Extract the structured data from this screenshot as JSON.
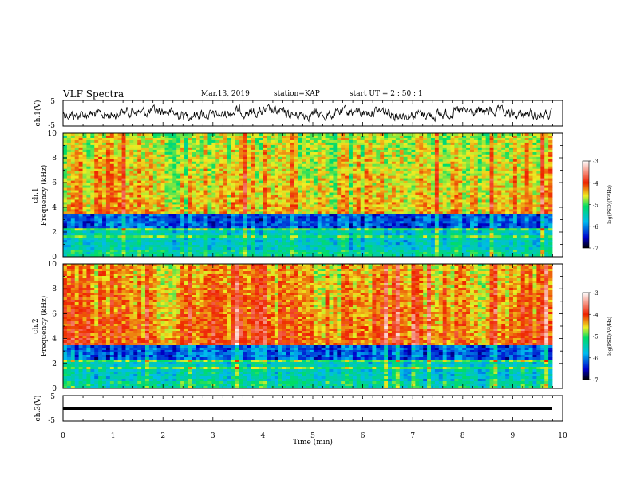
{
  "header": {
    "title": "VLF Spectra",
    "date": "Mar.13, 2019",
    "station": "station=KAP",
    "start": "start  UT =  2 : 50 : 1"
  },
  "chart_data": [
    {
      "type": "line",
      "name": "ch1-waveform",
      "ylabel": "ch.1(V)",
      "ylim": [
        -5,
        5
      ],
      "yticks": [
        "5",
        "-5"
      ],
      "xlim": [
        0,
        10
      ]
    },
    {
      "type": "heatmap",
      "name": "ch1-spectrogram",
      "ylabel": "ch.1\nFrequency  (kHz)",
      "ylim": [
        0,
        10
      ],
      "yticks": [
        "0",
        "2",
        "4",
        "6",
        "8",
        "10"
      ],
      "xlim": [
        0,
        10
      ],
      "colorbar": {
        "ticks": [
          "-3",
          "-4",
          "-5",
          "-6",
          "-7"
        ],
        "range": [
          -7,
          -3
        ],
        "label": "log(PSD)(V²/Hz)"
      }
    },
    {
      "type": "heatmap",
      "name": "ch2-spectrogram",
      "ylabel": "ch.2\nFrequency  (kHz)",
      "ylim": [
        0,
        10
      ],
      "yticks": [
        "0",
        "2",
        "4",
        "6",
        "8",
        "10"
      ],
      "xlim": [
        0,
        10
      ],
      "colorbar": {
        "ticks": [
          "-3",
          "-4",
          "-5",
          "-6",
          "-7"
        ],
        "range": [
          -7,
          -3
        ],
        "label": "log(PSD)(V²/Hz)"
      }
    },
    {
      "type": "line",
      "name": "ch3-waveform",
      "ylabel": "ch.3(V)",
      "ylim": [
        -5,
        5
      ],
      "yticks": [
        "5",
        "-5"
      ],
      "xlim": [
        0,
        10
      ],
      "xlabel": "Time  (min)",
      "xticks": [
        "0",
        "1",
        "2",
        "3",
        "4",
        "5",
        "6",
        "7",
        "8",
        "9",
        "10"
      ]
    }
  ]
}
